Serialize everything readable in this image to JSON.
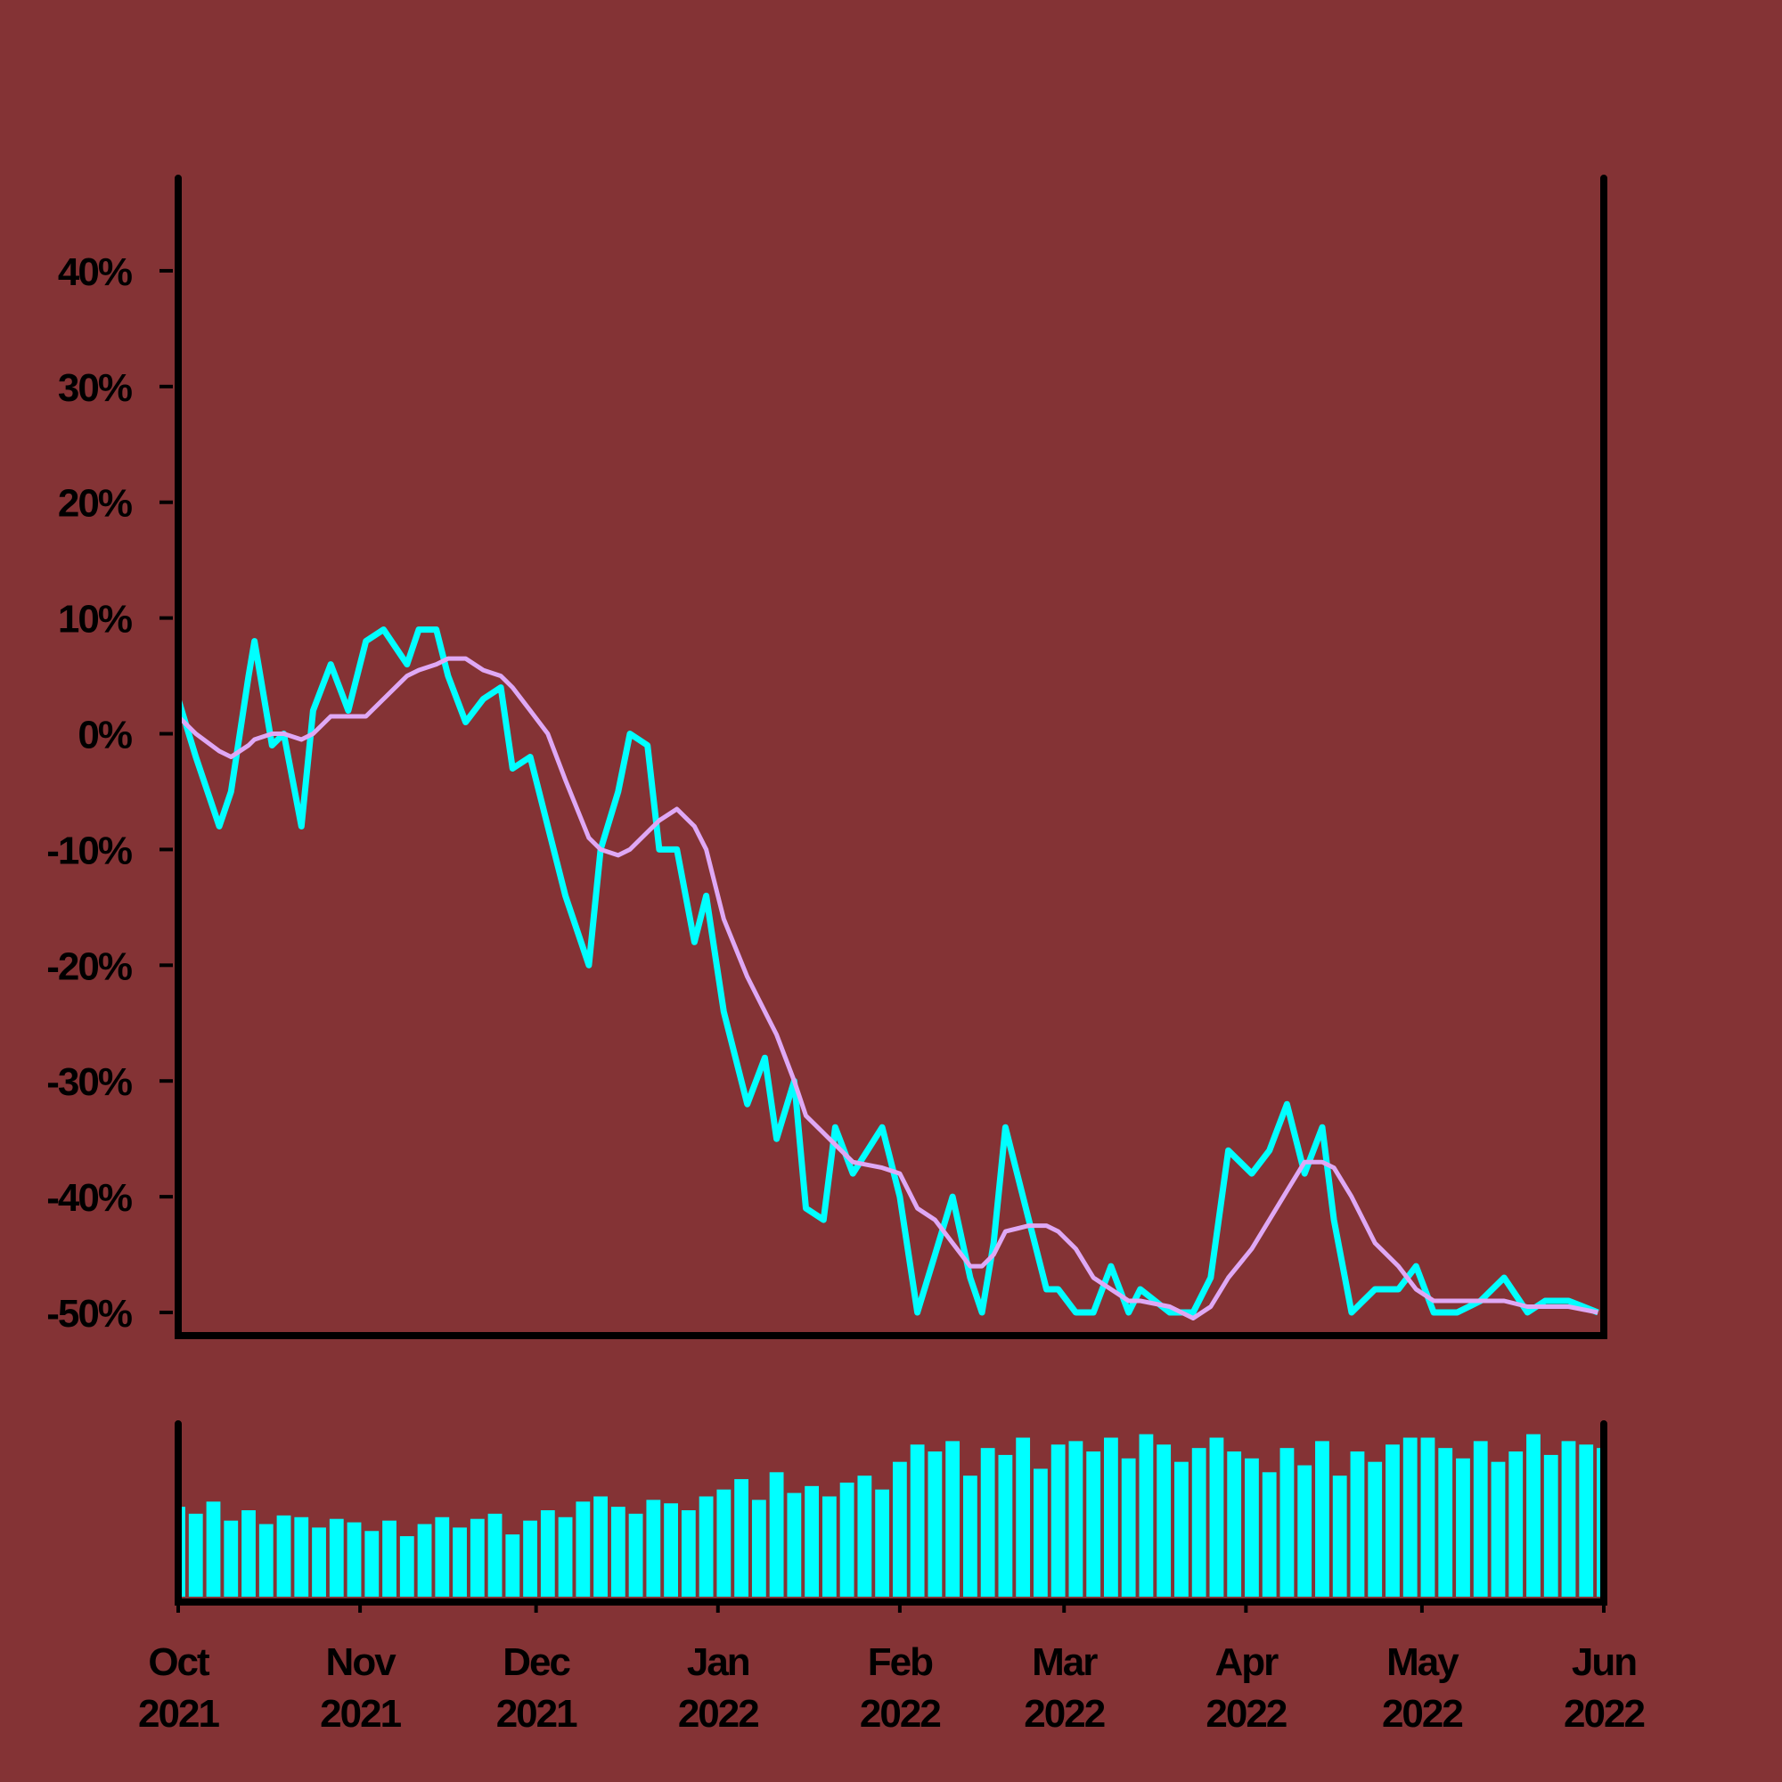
{
  "chart_data": [
    {
      "type": "line",
      "x": [
        0,
        3,
        7,
        9,
        12,
        13,
        16,
        18,
        21,
        23,
        26,
        29,
        32,
        35,
        39,
        41,
        44,
        46,
        49,
        52,
        55,
        57,
        60,
        63,
        66,
        70,
        72,
        75,
        77,
        80,
        82,
        85,
        88,
        90,
        93,
        97,
        100,
        102,
        105,
        107,
        110,
        112,
        115,
        120,
        123,
        126,
        129,
        132,
        135,
        137,
        139,
        141,
        145,
        148,
        150,
        153,
        156,
        159,
        162,
        164,
        169,
        173,
        176,
        179,
        183,
        186,
        189,
        192,
        195,
        197,
        200,
        204,
        208,
        211,
        214,
        218,
        222,
        226,
        230,
        233,
        237,
        242
      ],
      "series": [
        {
          "color": "#00ffff",
          "values": [
            3,
            -2,
            -8,
            -5,
            5,
            8,
            -1,
            0,
            -8,
            2,
            6,
            2,
            8,
            9,
            6,
            9,
            9,
            5,
            1,
            3,
            4,
            -3,
            -2,
            -8,
            -14,
            -20,
            -10,
            -5,
            0,
            -1,
            -10,
            -10,
            -18,
            -14,
            -24,
            -32,
            -28,
            -35,
            -30,
            -41,
            -42,
            -34,
            -38,
            -34,
            -40,
            -50,
            -45,
            -40,
            -47,
            -50,
            -44,
            -34,
            -42,
            -48,
            -48,
            -50,
            -50,
            -46,
            -50,
            -48,
            -50,
            -50,
            -47,
            -36,
            -38,
            -36,
            -32,
            -38,
            -34,
            -42,
            -50,
            -48,
            -48,
            -46,
            -50,
            -50,
            -49,
            -47,
            -50,
            -49,
            -49,
            -50
          ]
        },
        {
          "color": "#dfa8f5",
          "values": [
            1.5,
            0,
            -1.5,
            -2,
            -1,
            -0.5,
            0,
            0,
            -0.5,
            0,
            1.5,
            1.5,
            1.5,
            3,
            5,
            5.5,
            6,
            6.5,
            6.5,
            5.5,
            5,
            4,
            2,
            0,
            -4,
            -9,
            -10,
            -10.5,
            -10,
            -8.5,
            -7.5,
            -6.5,
            -8,
            -10,
            -16,
            -21,
            -24,
            -26,
            -30,
            -33,
            -34.5,
            -35.5,
            -37,
            -37.5,
            -38,
            -41,
            -42,
            -44,
            -46,
            -46,
            -45,
            -43,
            -42.5,
            -42.5,
            -43,
            -44.5,
            -47,
            -48,
            -49,
            -49,
            -49.5,
            -50.5,
            -49.5,
            -47,
            -44.5,
            -42,
            -39.5,
            -37,
            -37,
            -37.5,
            -40,
            -44,
            -46,
            -48,
            -49,
            -49,
            -49,
            -49,
            -49.5,
            -49.5,
            -49.5,
            -50
          ]
        }
      ],
      "xlim": [
        0,
        243
      ],
      "ylim": [
        -52,
        48
      ],
      "yticks": [
        {
          "value": 40,
          "label": "40%"
        },
        {
          "value": 30,
          "label": "30%"
        },
        {
          "value": 20,
          "label": "20%"
        },
        {
          "value": 10,
          "label": "10%"
        },
        {
          "value": 0,
          "label": "0%"
        },
        {
          "value": -10,
          "label": "-10%"
        },
        {
          "value": -20,
          "label": "-20%"
        },
        {
          "value": -30,
          "label": "-30%"
        },
        {
          "value": -40,
          "label": "-40%"
        },
        {
          "value": -50,
          "label": "-50%"
        }
      ]
    },
    {
      "type": "bar",
      "x": [
        0,
        3,
        6,
        9,
        12,
        15,
        18,
        21,
        24,
        27,
        30,
        33,
        36,
        39,
        42,
        45,
        48,
        51,
        54,
        57,
        60,
        63,
        66,
        69,
        72,
        75,
        78,
        81,
        84,
        87,
        90,
        93,
        96,
        99,
        102,
        105,
        108,
        111,
        114,
        117,
        120,
        123,
        126,
        129,
        132,
        135,
        138,
        141,
        144,
        147,
        150,
        153,
        156,
        159,
        162,
        165,
        168,
        171,
        174,
        177,
        180,
        183,
        186,
        189,
        192,
        195,
        198,
        201,
        204,
        207,
        210,
        213,
        216,
        219,
        222,
        225,
        228,
        231,
        234,
        237,
        240,
        243
      ],
      "values": [
        52,
        48,
        55,
        44,
        50,
        42,
        47,
        46,
        40,
        45,
        43,
        38,
        44,
        35,
        42,
        46,
        40,
        45,
        48,
        36,
        44,
        50,
        46,
        55,
        58,
        52,
        48,
        56,
        54,
        50,
        58,
        62,
        68,
        56,
        72,
        60,
        64,
        58,
        66,
        70,
        62,
        78,
        88,
        84,
        90,
        70,
        86,
        82,
        92,
        74,
        88,
        90,
        84,
        92,
        80,
        94,
        88,
        78,
        86,
        92,
        84,
        80,
        72,
        86,
        76,
        90,
        70,
        84,
        78,
        88,
        92,
        92,
        86,
        80,
        90,
        78,
        84,
        94,
        82,
        90,
        88,
        86
      ],
      "color": "#00ffff",
      "xlim": [
        0,
        243
      ],
      "ylim": [
        0,
        100
      ],
      "xticks": [
        {
          "value": 0,
          "label": "Oct 2021"
        },
        {
          "value": 31,
          "label": "Nov 2021"
        },
        {
          "value": 61,
          "label": "Dec 2021"
        },
        {
          "value": 92,
          "label": "Jan 2022"
        },
        {
          "value": 123,
          "label": "Feb 2022"
        },
        {
          "value": 151,
          "label": "Mar 2022"
        },
        {
          "value": 182,
          "label": "Apr 2022"
        },
        {
          "value": 212,
          "label": "May 2022"
        },
        {
          "value": 243,
          "label": "Jun 2022"
        }
      ]
    }
  ]
}
